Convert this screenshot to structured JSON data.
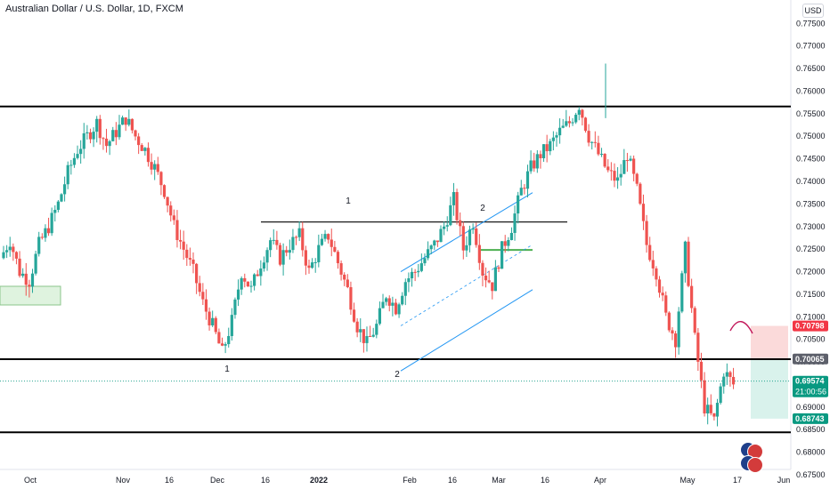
{
  "header": {
    "symbol_title": "Australian Dollar / U.S. Dollar, 1D, FXCM",
    "currency_button": "USD"
  },
  "colors": {
    "up": "#26a69a",
    "down": "#ef5350",
    "level_line": "#000000",
    "channel": "#2196f3",
    "support_short": "#4caf50",
    "marker_neutral": "#5d606b",
    "label_red": "#f23645",
    "label_teal": "#089981",
    "tp_zone": "#d9f2ec",
    "sl_zone": "#fbdada",
    "zone_left": "#dff3df"
  },
  "chart_data": {
    "type": "candlestick",
    "ylim": [
      0.675,
      0.779
    ],
    "y_axis_ticks": [
      "0.77500",
      "0.77000",
      "0.76500",
      "0.76000",
      "0.75500",
      "0.75000",
      "0.74500",
      "0.74000",
      "0.73500",
      "0.73000",
      "0.72500",
      "0.72000",
      "0.71500",
      "0.71000",
      "0.70500",
      "0.70000",
      "0.69500",
      "0.69000",
      "0.68500",
      "0.68000",
      "0.67500"
    ],
    "x_axis_labels": [
      "Oct",
      "Nov",
      "16",
      "Dec",
      "16",
      "2022",
      "Feb",
      "16",
      "Mar",
      "16",
      "Apr",
      "May",
      "17",
      "Jun"
    ],
    "price_labels": [
      {
        "value": "0.70798",
        "bg": "#f23645",
        "fg": "#ffffff"
      },
      {
        "value": "0.70065",
        "bg": "#5d606b",
        "fg": "#ffffff"
      },
      {
        "value": "0.69574",
        "value2": "21:00:56",
        "bg": "#089981",
        "fg": "#ffffff"
      },
      {
        "value": "0.68743",
        "bg": "#089981",
        "fg": "#ffffff"
      }
    ],
    "horizontal_levels": [
      0.7566,
      0.7006,
      0.6844
    ],
    "annotations": [
      "1",
      "1",
      "2",
      "2"
    ],
    "candle_path": [
      0.723,
      0.727,
      0.72,
      0.718,
      0.726,
      0.73,
      0.735,
      0.742,
      0.747,
      0.75,
      0.753,
      0.748,
      0.751,
      0.754,
      0.75,
      0.747,
      0.743,
      0.738,
      0.73,
      0.725,
      0.72,
      0.713,
      0.708,
      0.702,
      0.709,
      0.72,
      0.716,
      0.722,
      0.727,
      0.723,
      0.726,
      0.728,
      0.72,
      0.725,
      0.728,
      0.722,
      0.716,
      0.708,
      0.704,
      0.708,
      0.715,
      0.712,
      0.718,
      0.72,
      0.723,
      0.726,
      0.73,
      0.736,
      0.725,
      0.731,
      0.72,
      0.717,
      0.725,
      0.73,
      0.738,
      0.743,
      0.746,
      0.748,
      0.751,
      0.753,
      0.757,
      0.75,
      0.746,
      0.742,
      0.74,
      0.746,
      0.738,
      0.726,
      0.72,
      0.71,
      0.705,
      0.725,
      0.705,
      0.69,
      0.687,
      0.698,
      0.695
    ]
  }
}
